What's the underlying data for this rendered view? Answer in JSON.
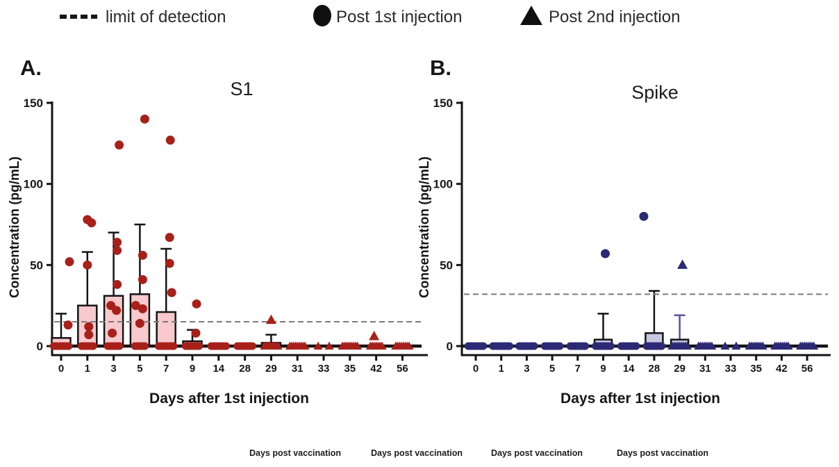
{
  "figure": {
    "legend": [
      {
        "icon": "dashed-line",
        "label": "limit of detection"
      },
      {
        "icon": "filled-circle",
        "label": "Post 1st injection"
      },
      {
        "icon": "filled-triangle",
        "label": "Post 2nd injection"
      }
    ],
    "footer_labels": [
      "Days post vaccination",
      "Days post vaccination",
      "Days post vaccination",
      "Days post vaccination"
    ]
  },
  "colors": {
    "panel_a_point": "#a8201a",
    "panel_a_box_fill": "#f8c9cd",
    "panel_b_point": "#2c2a75",
    "panel_b_box_fill": "#c9c6e4",
    "panel_b_alt_whisker": "#564fa0",
    "box_border": "#141414",
    "lod_line": "#7a7a7a",
    "axis": "#141414"
  },
  "chart_data": [
    {
      "type": "boxplot-scatter",
      "panel_label": "A.",
      "title": "S1",
      "xlabel": "Days after 1st injection",
      "ylabel": "Concentration (pg/mL)",
      "ylim": [
        0,
        150
      ],
      "yticks": [
        0,
        50,
        100,
        150
      ],
      "limit_of_detection_pg_ml": 15,
      "categories": [
        "0",
        "1",
        "3",
        "5",
        "7",
        "9",
        "14",
        "28",
        "29",
        "31",
        "33",
        "35",
        "42",
        "56"
      ],
      "groups": [
        {
          "day": "0",
          "marker": "circle",
          "q3": 5,
          "whisker_high": 20,
          "outliers": [
            {
              "v": 52,
              "dx": 12
            },
            {
              "v": 13,
              "dx": 10
            }
          ],
          "zeros": 9
        },
        {
          "day": "1",
          "marker": "circle",
          "q3": 25,
          "whisker_high": 58,
          "outliers": [
            {
              "v": 78,
              "dx": 0
            },
            {
              "v": 76,
              "dx": 6
            },
            {
              "v": 50,
              "dx": 0
            },
            {
              "v": 12,
              "dx": 2
            },
            {
              "v": 7,
              "dx": 2
            }
          ],
          "zeros": 7
        },
        {
          "day": "3",
          "marker": "circle",
          "q3": 31,
          "whisker_high": 70,
          "outliers": [
            {
              "v": 124,
              "dx": 8
            },
            {
              "v": 64,
              "dx": 5
            },
            {
              "v": 59,
              "dx": 5
            },
            {
              "v": 38,
              "dx": 5
            },
            {
              "v": 25,
              "dx": -4
            },
            {
              "v": 22,
              "dx": 4
            },
            {
              "v": 8,
              "dx": -2
            }
          ],
          "zeros": 7
        },
        {
          "day": "5",
          "marker": "circle",
          "q3": 32,
          "whisker_high": 75,
          "outliers": [
            {
              "v": 140,
              "dx": 7
            },
            {
              "v": 56,
              "dx": 4
            },
            {
              "v": 41,
              "dx": 4
            },
            {
              "v": 25,
              "dx": -6
            },
            {
              "v": 23,
              "dx": 4
            },
            {
              "v": 14,
              "dx": 0
            }
          ],
          "zeros": 6
        },
        {
          "day": "7",
          "marker": "circle",
          "q3": 21,
          "whisker_high": 60,
          "outliers": [
            {
              "v": 127,
              "dx": 6
            },
            {
              "v": 67,
              "dx": 5
            },
            {
              "v": 51,
              "dx": 5
            },
            {
              "v": 33,
              "dx": 8
            }
          ],
          "zeros": 9
        },
        {
          "day": "9",
          "marker": "circle",
          "q3": 3,
          "whisker_high": 10,
          "outliers": [
            {
              "v": 26,
              "dx": 6
            },
            {
              "v": 8,
              "dx": 5
            }
          ],
          "zeros": 8
        },
        {
          "day": "14",
          "marker": "circle",
          "q3": 0,
          "whisker_high": 0,
          "outliers": [],
          "zeros": 9
        },
        {
          "day": "28",
          "marker": "circle",
          "q3": 0,
          "whisker_high": 0,
          "outliers": [],
          "zeros": 9
        },
        {
          "day": "29",
          "marker": "triangle",
          "q3": 2,
          "whisker_high": 7,
          "outliers": [
            {
              "v": 16,
              "dx": 0
            }
          ],
          "zeros": 8
        },
        {
          "day": "31",
          "marker": "triangle",
          "q3": 0,
          "whisker_high": 0,
          "outliers": [],
          "zeros": 9
        },
        {
          "day": "33",
          "marker": "triangle",
          "q3": 0,
          "whisker_high": 0,
          "outliers": [],
          "zeros": 2,
          "spread": 26
        },
        {
          "day": "35",
          "marker": "triangle",
          "q3": 0,
          "whisker_high": 0,
          "outliers": [],
          "zeros": 9
        },
        {
          "day": "42",
          "marker": "triangle",
          "q3": 0,
          "whisker_high": 0,
          "outliers": [
            {
              "v": 6,
              "dx": -3
            }
          ],
          "zeros": 7
        },
        {
          "day": "56",
          "marker": "triangle",
          "q3": 0,
          "whisker_high": 0,
          "outliers": [],
          "zeros": 8
        }
      ]
    },
    {
      "type": "boxplot-scatter",
      "panel_label": "B.",
      "title": "Spike",
      "xlabel": "Days after 1st injection",
      "ylabel": "Concentration (pg/mL)",
      "ylim": [
        0,
        150
      ],
      "yticks": [
        0,
        50,
        100,
        150
      ],
      "limit_of_detection_pg_ml": 32,
      "categories": [
        "0",
        "1",
        "3",
        "5",
        "7",
        "9",
        "14",
        "28",
        "29",
        "31",
        "33",
        "35",
        "42",
        "56"
      ],
      "groups": [
        {
          "day": "0",
          "marker": "circle",
          "q3": 0,
          "whisker_high": 0,
          "outliers": [],
          "zeros": 9
        },
        {
          "day": "1",
          "marker": "circle",
          "q3": 0,
          "whisker_high": 0,
          "outliers": [],
          "zeros": 10
        },
        {
          "day": "3",
          "marker": "circle",
          "q3": 0,
          "whisker_high": 0,
          "outliers": [],
          "zeros": 9
        },
        {
          "day": "5",
          "marker": "circle",
          "q3": 0,
          "whisker_high": 0,
          "outliers": [],
          "zeros": 9
        },
        {
          "day": "7",
          "marker": "circle",
          "q3": 0,
          "whisker_high": 0,
          "outliers": [],
          "zeros": 9
        },
        {
          "day": "9",
          "marker": "circle",
          "q3": 4,
          "whisker_high": 20,
          "outliers": [
            {
              "v": 57,
              "dx": 3
            }
          ],
          "zeros": 9
        },
        {
          "day": "14",
          "marker": "circle",
          "q3": 0,
          "whisker_high": 0,
          "outliers": [],
          "zeros": 9
        },
        {
          "day": "28",
          "marker": "circle",
          "q3": 8,
          "whisker_high": 34,
          "outliers": [
            {
              "v": 80,
              "dx": -15
            }
          ],
          "zeros": 9
        },
        {
          "day": "29",
          "marker": "triangle",
          "q3": 4,
          "whisker_high": 19,
          "whisker_alt_color": true,
          "outliers": [
            {
              "v": 50,
              "dx": 4
            }
          ],
          "zeros": 9
        },
        {
          "day": "31",
          "marker": "triangle",
          "q3": 0,
          "whisker_high": 0,
          "outliers": [],
          "zeros": 8
        },
        {
          "day": "33",
          "marker": "triangle",
          "q3": 0,
          "whisker_high": 0,
          "outliers": [],
          "zeros": 2,
          "spread": 26
        },
        {
          "day": "35",
          "marker": "triangle",
          "q3": 0,
          "whisker_high": 0,
          "outliers": [],
          "zeros": 8
        },
        {
          "day": "42",
          "marker": "triangle",
          "q3": 0,
          "whisker_high": 0,
          "outliers": [],
          "zeros": 8
        },
        {
          "day": "56",
          "marker": "triangle",
          "q3": 0,
          "whisker_high": 0,
          "outliers": [],
          "zeros": 8
        }
      ]
    }
  ]
}
